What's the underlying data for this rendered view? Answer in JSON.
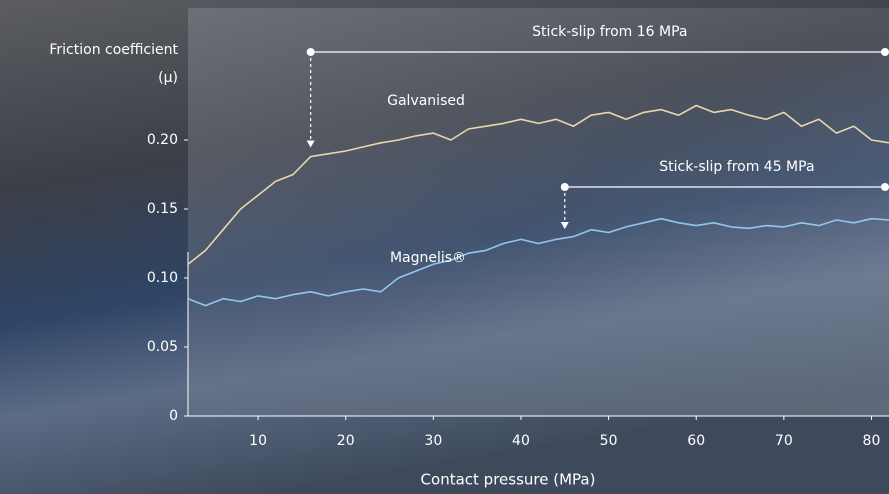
{
  "chart_data": {
    "type": "line",
    "y_label": [
      "Friction coefficient",
      "(μ)"
    ],
    "x_label": "Contact pressure (MPa)",
    "x": [
      2,
      4,
      6,
      8,
      10,
      12,
      14,
      16,
      18,
      20,
      22,
      24,
      26,
      28,
      30,
      32,
      34,
      36,
      38,
      40,
      42,
      44,
      46,
      48,
      50,
      52,
      54,
      56,
      58,
      60,
      62,
      64,
      66,
      68,
      70,
      72,
      74,
      76,
      78,
      80,
      82
    ],
    "series": [
      {
        "name": "Galvanised",
        "color": "#ead6ab",
        "values": [
          0.11,
          0.12,
          0.135,
          0.15,
          0.16,
          0.17,
          0.175,
          0.188,
          0.19,
          0.192,
          0.195,
          0.198,
          0.2,
          0.203,
          0.205,
          0.2,
          0.208,
          0.21,
          0.212,
          0.215,
          0.212,
          0.215,
          0.21,
          0.218,
          0.22,
          0.215,
          0.22,
          0.222,
          0.218,
          0.225,
          0.22,
          0.222,
          0.218,
          0.215,
          0.22,
          0.21,
          0.215,
          0.205,
          0.21,
          0.2,
          0.198
        ]
      },
      {
        "name": "Magnelis®",
        "color": "#93c6ee",
        "values": [
          0.085,
          0.08,
          0.085,
          0.083,
          0.087,
          0.085,
          0.088,
          0.09,
          0.087,
          0.09,
          0.092,
          0.09,
          0.1,
          0.105,
          0.11,
          0.113,
          0.118,
          0.12,
          0.125,
          0.128,
          0.125,
          0.128,
          0.13,
          0.135,
          0.133,
          0.137,
          0.14,
          0.143,
          0.14,
          0.138,
          0.14,
          0.137,
          0.136,
          0.138,
          0.137,
          0.14,
          0.138,
          0.142,
          0.14,
          0.143,
          0.142
        ]
      }
    ],
    "annotations": [
      {
        "text": "Stick-slip from 16 MPa",
        "x": 16
      },
      {
        "text": "Stick-slip from 45 MPa",
        "x": 45
      }
    ],
    "xlim": [
      2,
      82
    ],
    "ylim": [
      0,
      0.3
    ],
    "xticks": [
      10,
      20,
      30,
      40,
      50,
      60,
      70,
      80
    ],
    "yticks": [
      0,
      0.05,
      {
        "value": 0.1,
        "label": "0.10"
      },
      0.15,
      {
        "value": 0.2,
        "label": "0.20"
      }
    ]
  }
}
